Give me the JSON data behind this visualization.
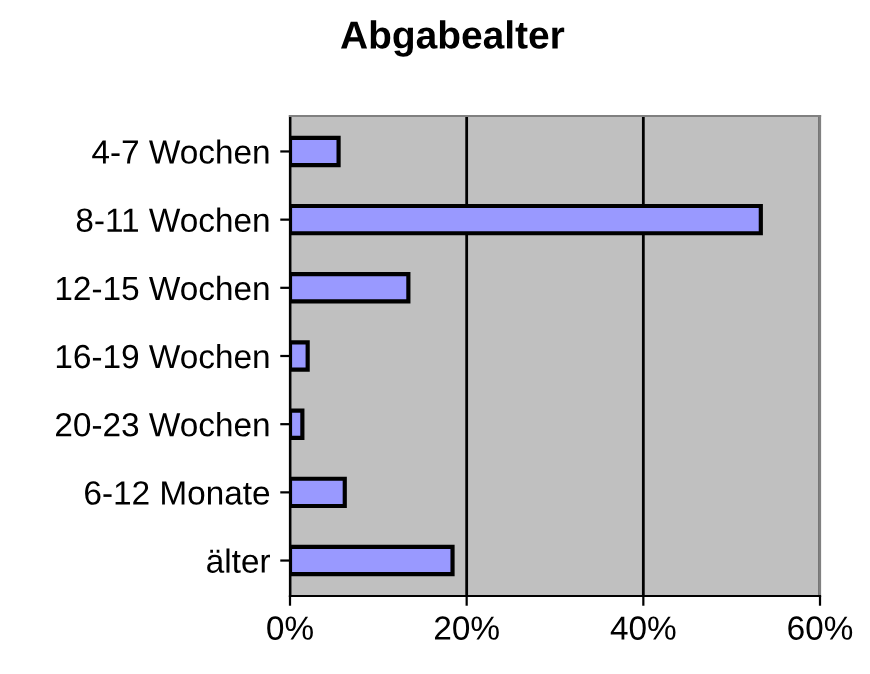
{
  "chart_data": {
    "type": "bar",
    "orientation": "horizontal",
    "title": "Abgabealter",
    "categories": [
      "4-7 Wochen",
      "8-11 Wochen",
      "12-15 Wochen",
      "16-19 Wochen",
      "20-23 Wochen",
      "6-12 Monate",
      "älter"
    ],
    "values": [
      5.5,
      53.3,
      13.4,
      2.0,
      1.4,
      6.2,
      18.4
    ],
    "color": "#9999ff",
    "xlim": [
      0,
      60
    ],
    "xticks": [
      {
        "value": 0,
        "label": "0%"
      },
      {
        "value": 20,
        "label": "20%"
      },
      {
        "value": 40,
        "label": "40%"
      },
      {
        "value": 60,
        "label": "60%"
      }
    ],
    "grid": "x",
    "legend": false
  }
}
